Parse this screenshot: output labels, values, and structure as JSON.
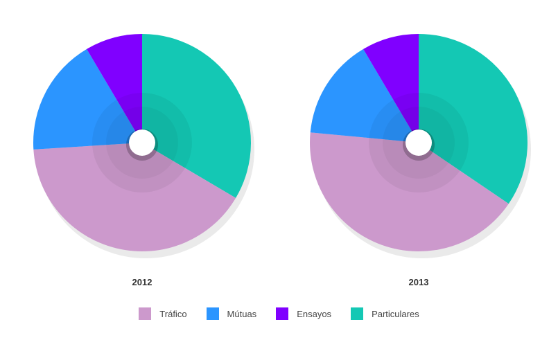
{
  "chart_data": {
    "type": "pie",
    "categories": [
      "Tráfico",
      "Mútuas",
      "Ensayos",
      "Particulares"
    ],
    "colors": [
      "#cc99cc",
      "#2b95ff",
      "#8000ff",
      "#14c8b4"
    ],
    "pies": [
      {
        "title": "2012",
        "values": [
          40.5,
          17.5,
          8.5,
          33.5
        ]
      },
      {
        "title": "2013",
        "values": [
          42,
          15,
          8.5,
          34.5
        ]
      }
    ],
    "legend_position": "bottom"
  }
}
